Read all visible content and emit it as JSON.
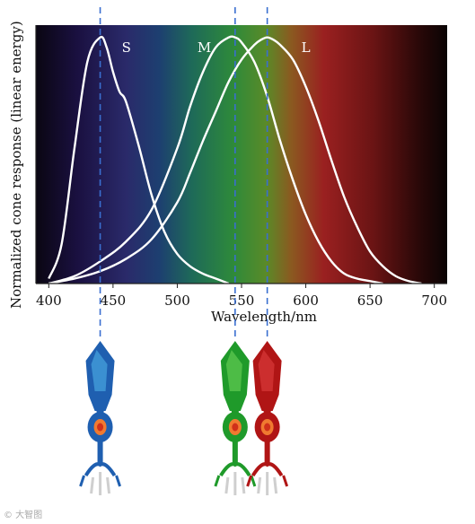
{
  "chart_data": {
    "type": "line",
    "xlabel": "Wavelength/nm",
    "ylabel": "Normalized cone response (linear energy)",
    "xlim": [
      390,
      710
    ],
    "ylim": [
      0,
      1.05
    ],
    "xticks": [
      400,
      450,
      500,
      550,
      600,
      650,
      700
    ],
    "grid": false,
    "background": "visible spectrum gradient",
    "series": [
      {
        "name": "S",
        "color": "#ffffff",
        "peak": 440,
        "x": [
          400,
          410,
          420,
          430,
          440,
          445,
          450,
          455,
          460,
          470,
          480,
          490,
          500,
          510,
          520,
          530,
          540
        ],
        "values": [
          0.02,
          0.16,
          0.55,
          0.9,
          1.0,
          0.96,
          0.86,
          0.78,
          0.74,
          0.56,
          0.36,
          0.21,
          0.12,
          0.07,
          0.04,
          0.02,
          0.0
        ]
      },
      {
        "name": "M",
        "color": "#ffffff",
        "peak": 545,
        "x": [
          400,
          420,
          440,
          460,
          480,
          500,
          510,
          520,
          530,
          540,
          545,
          550,
          560,
          570,
          580,
          590,
          600,
          610,
          620,
          630,
          640,
          650,
          660
        ],
        "values": [
          0.0,
          0.03,
          0.09,
          0.17,
          0.3,
          0.55,
          0.72,
          0.86,
          0.96,
          1.0,
          1.0,
          0.98,
          0.9,
          0.76,
          0.58,
          0.42,
          0.28,
          0.17,
          0.09,
          0.04,
          0.02,
          0.01,
          0.0
        ]
      },
      {
        "name": "L",
        "color": "#ffffff",
        "peak": 570,
        "x": [
          400,
          420,
          440,
          460,
          480,
          500,
          510,
          520,
          530,
          540,
          550,
          560,
          565,
          570,
          575,
          580,
          590,
          600,
          610,
          620,
          630,
          640,
          650,
          660,
          670,
          680,
          690
        ],
        "values": [
          0.0,
          0.02,
          0.05,
          0.1,
          0.18,
          0.33,
          0.45,
          0.58,
          0.7,
          0.82,
          0.91,
          0.97,
          0.99,
          1.0,
          0.99,
          0.97,
          0.91,
          0.8,
          0.66,
          0.5,
          0.35,
          0.23,
          0.13,
          0.07,
          0.03,
          0.01,
          0.0
        ]
      }
    ],
    "peak_markers": [
      440,
      545,
      570
    ]
  },
  "labels": {
    "ylabel": "Normalized cone response (linear energy)",
    "xlabel": "Wavelength/nm",
    "watermark": "© 大智图"
  },
  "cones": [
    {
      "name": "S",
      "color": "#1f5fb0",
      "light": "#4fb0e8",
      "peak": 440
    },
    {
      "name": "M",
      "color": "#1f9a2a",
      "light": "#6cd35a",
      "peak": 545
    },
    {
      "name": "L",
      "color": "#b01515",
      "light": "#e04040",
      "peak": 570
    }
  ]
}
